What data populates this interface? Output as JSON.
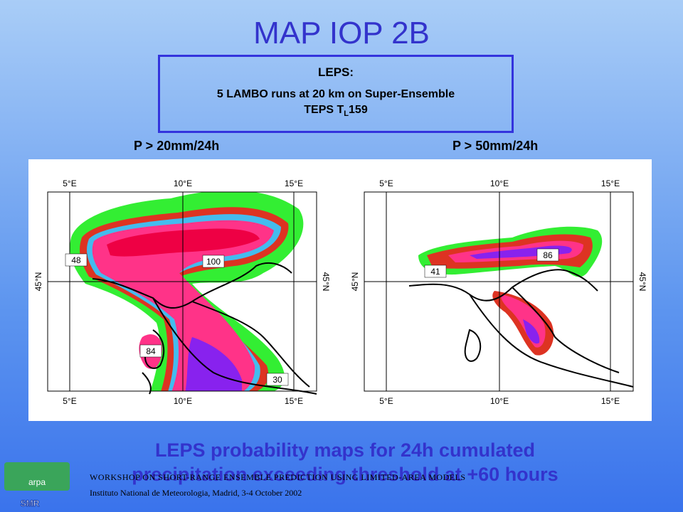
{
  "title": "MAP IOP 2B",
  "box": {
    "heading": "LEPS:",
    "line1": "5 LAMBO runs at 20 km on Super-Ensemble",
    "line2": "TEPS T",
    "subscript": "L",
    "suffix": "159"
  },
  "maps": [
    {
      "label": "P > 20mm/24h",
      "lon_labels": [
        "5°E",
        "10°E",
        "15°E"
      ],
      "lat_label": "45°N",
      "values": [
        "48",
        "100",
        "84",
        "30"
      ]
    },
    {
      "label": "P > 50mm/24h",
      "lon_labels": [
        "5°E",
        "10°E",
        "15°E"
      ],
      "lat_label": "45°N",
      "values": [
        "41",
        "86"
      ]
    }
  ],
  "caption": {
    "line1": "LEPS probability maps for 24h cumulated",
    "line2": "precipitation exceeding threshold at +60 hours"
  },
  "footer": {
    "line1": "WORKSHOP ON SHORT-RANGE ENSEMBLE PREDICTION USING LIMITED-AREA MODELS",
    "line2": "Instituto National de Meteorologia, Madrid, 3-4 October 2002"
  },
  "logo": {
    "top": "arpa",
    "bottom": "SMR"
  }
}
